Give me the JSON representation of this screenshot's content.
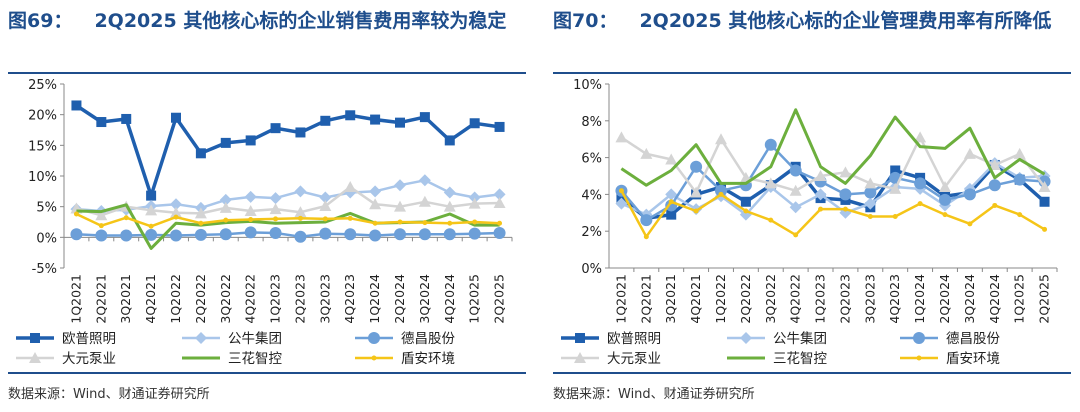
{
  "figures": [
    {
      "title_num": "图69：",
      "title_text": "2Q2025 其他核心标的企业销售费用率较为稳定",
      "source": "数据来源：Wind、财通证券研究所"
    },
    {
      "title_num": "图70：",
      "title_text": "2Q2025 其他核心标的企业管理费用率有所降低",
      "source": "数据来源：Wind、财通证券研究所"
    }
  ],
  "chart_data": [
    {
      "type": "line",
      "categories": [
        "1Q2021",
        "2Q2021",
        "3Q2021",
        "4Q2021",
        "1Q2022",
        "2Q2022",
        "3Q2022",
        "4Q2022",
        "1Q2023",
        "2Q2023",
        "3Q2023",
        "4Q2023",
        "1Q2024",
        "2Q2024",
        "3Q2024",
        "4Q2024",
        "1Q2025",
        "2Q2025"
      ],
      "y_ticks": [
        "25%",
        "20%",
        "15%",
        "10%",
        "5%",
        "0%",
        "-5%"
      ],
      "ylim": [
        -5,
        25
      ],
      "unit": "%",
      "grid": false,
      "legend_position": "bottom",
      "series": [
        {
          "name": "欧普照明",
          "color": "#1F5FAE",
          "marker": "square",
          "width": 3.5,
          "values": [
            21.5,
            18.8,
            19.3,
            6.8,
            19.5,
            13.7,
            15.4,
            15.8,
            17.8,
            17.1,
            19.0,
            19.9,
            19.2,
            18.7,
            19.6,
            15.8,
            18.6,
            18.0
          ]
        },
        {
          "name": "公牛集团",
          "color": "#A9C6EA",
          "marker": "diamond",
          "width": 2.5,
          "values": [
            4.6,
            4.3,
            4.5,
            5.1,
            5.4,
            4.8,
            6.1,
            6.6,
            6.4,
            7.5,
            6.5,
            7.3,
            7.5,
            8.5,
            9.3,
            7.3,
            6.5,
            7.0
          ]
        },
        {
          "name": "德昌股份",
          "color": "#6C9FD8",
          "marker": "circle",
          "width": 2.5,
          "values": [
            0.5,
            0.3,
            0.3,
            0.4,
            0.3,
            0.4,
            0.5,
            0.8,
            0.7,
            0.1,
            0.6,
            0.5,
            0.3,
            0.5,
            0.5,
            0.5,
            0.6,
            0.7
          ]
        },
        {
          "name": "大元泵业",
          "color": "#D4D4D4",
          "marker": "triangle",
          "width": 2.5,
          "values": [
            4.7,
            3.6,
            5.0,
            4.4,
            4.0,
            3.9,
            4.8,
            4.3,
            4.6,
            4.1,
            5.1,
            8.2,
            5.4,
            5.0,
            5.8,
            5.0,
            5.5,
            5.6
          ]
        },
        {
          "name": "三花智控",
          "color": "#6CAF3D",
          "marker": "none",
          "width": 3,
          "values": [
            4.3,
            4.2,
            5.3,
            -1.8,
            2.3,
            2.0,
            2.4,
            2.6,
            2.3,
            2.4,
            2.5,
            3.9,
            2.3,
            2.4,
            2.5,
            3.8,
            2.0,
            2.0
          ]
        },
        {
          "name": "盾安环境",
          "color": "#F5C518",
          "marker": "dot",
          "width": 2.5,
          "values": [
            3.8,
            1.9,
            3.2,
            1.8,
            3.3,
            2.3,
            2.8,
            2.9,
            3.0,
            3.1,
            3.0,
            3.1,
            2.3,
            2.5,
            2.4,
            2.3,
            2.5,
            2.3
          ]
        }
      ]
    },
    {
      "type": "line",
      "categories": [
        "1Q2021",
        "2Q2021",
        "3Q2021",
        "4Q2021",
        "1Q2022",
        "2Q2022",
        "3Q2022",
        "4Q2022",
        "1Q2023",
        "2Q2023",
        "3Q2023",
        "4Q2023",
        "1Q2024",
        "2Q2024",
        "3Q2024",
        "4Q2024",
        "1Q2025",
        "2Q2025"
      ],
      "y_ticks": [
        "10%",
        "8%",
        "6%",
        "4%",
        "2%",
        "0%"
      ],
      "ylim": [
        0,
        10
      ],
      "unit": "%",
      "grid": false,
      "legend_position": "bottom",
      "series": [
        {
          "name": "欧普照明",
          "color": "#1F5FAE",
          "marker": "square",
          "width": 3.5,
          "values": [
            3.8,
            2.7,
            2.9,
            4.0,
            4.4,
            3.6,
            4.5,
            5.5,
            3.8,
            3.7,
            3.3,
            5.3,
            4.9,
            3.9,
            4.1,
            5.6,
            4.8,
            3.6
          ]
        },
        {
          "name": "公牛集团",
          "color": "#A9C6EA",
          "marker": "diamond",
          "width": 2.5,
          "values": [
            3.5,
            2.9,
            4.0,
            3.2,
            3.9,
            2.9,
            4.4,
            3.3,
            4.0,
            3.0,
            3.5,
            4.4,
            4.3,
            3.4,
            4.3,
            5.7,
            4.9,
            5.0
          ]
        },
        {
          "name": "德昌股份",
          "color": "#6C9FD8",
          "marker": "circle",
          "width": 2.5,
          "values": [
            4.2,
            2.6,
            3.4,
            5.5,
            4.2,
            4.5,
            6.7,
            5.3,
            4.7,
            4.0,
            4.1,
            4.9,
            4.6,
            3.7,
            4.0,
            4.5,
            4.8,
            4.7
          ]
        },
        {
          "name": "大元泵业",
          "color": "#D4D4D4",
          "marker": "triangle",
          "width": 2.5,
          "values": [
            7.1,
            6.2,
            5.9,
            4.1,
            7.0,
            4.9,
            4.6,
            4.2,
            5.0,
            5.2,
            4.6,
            4.3,
            7.1,
            4.4,
            6.2,
            5.6,
            6.2,
            4.4
          ]
        },
        {
          "name": "三花智控",
          "color": "#6CAF3D",
          "marker": "none",
          "width": 3,
          "values": [
            5.4,
            4.5,
            5.3,
            6.7,
            4.6,
            4.6,
            5.5,
            8.6,
            5.5,
            4.6,
            6.1,
            8.2,
            6.6,
            6.5,
            7.6,
            4.9,
            5.9,
            5.1
          ]
        },
        {
          "name": "盾安环境",
          "color": "#F5C518",
          "marker": "dot",
          "width": 2.5,
          "values": [
            4.2,
            1.7,
            3.6,
            3.1,
            4.0,
            3.1,
            2.6,
            1.8,
            3.2,
            3.2,
            2.8,
            2.8,
            3.5,
            2.9,
            2.4,
            3.4,
            2.9,
            2.1
          ]
        }
      ]
    }
  ]
}
